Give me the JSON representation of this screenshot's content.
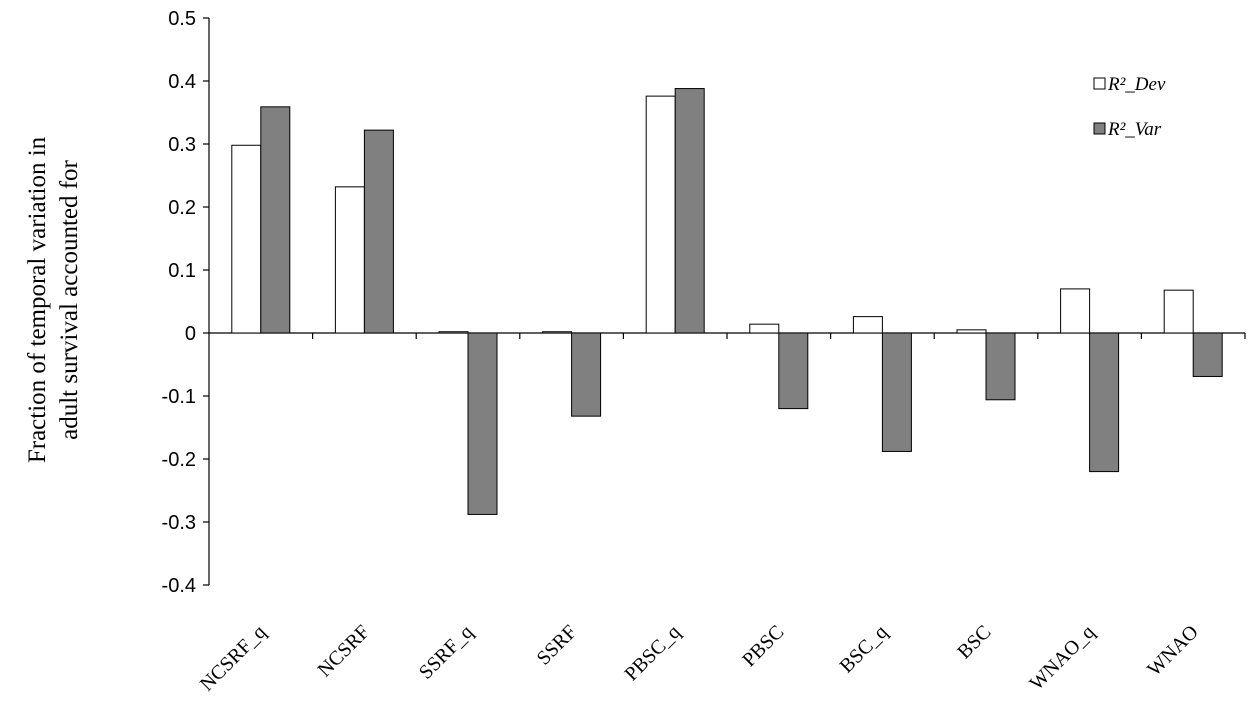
{
  "chart_data": {
    "type": "bar",
    "ylabel_lines": [
      "Fraction of temporal variation in",
      "adult survival accounted for"
    ],
    "ylim": [
      -0.4,
      0.5
    ],
    "yticks": [
      "0.5",
      "0.4",
      "0.3",
      "0.2",
      "0.1",
      "0",
      "-0.1",
      "-0.2",
      "-0.3",
      "-0.4"
    ],
    "categories": [
      "NCSRF_q",
      "NCSRF",
      "SSRF_q",
      "SSRF",
      "PBSC_q",
      "PBSC",
      "BSC_q",
      "BSC",
      "WNAO_q",
      "WNAO"
    ],
    "series": [
      {
        "name": "R²_Dev",
        "color": "#ffffff",
        "values": [
          0.298,
          0.232,
          0.002,
          0.002,
          0.376,
          0.014,
          0.026,
          0.005,
          0.07,
          0.068
        ]
      },
      {
        "name": "R²_Var",
        "color": "#808080",
        "values": [
          0.359,
          0.322,
          -0.288,
          -0.132,
          0.388,
          -0.12,
          -0.188,
          -0.106,
          -0.22,
          -0.069
        ]
      }
    ],
    "legend_position": "top-right",
    "grid": false
  }
}
